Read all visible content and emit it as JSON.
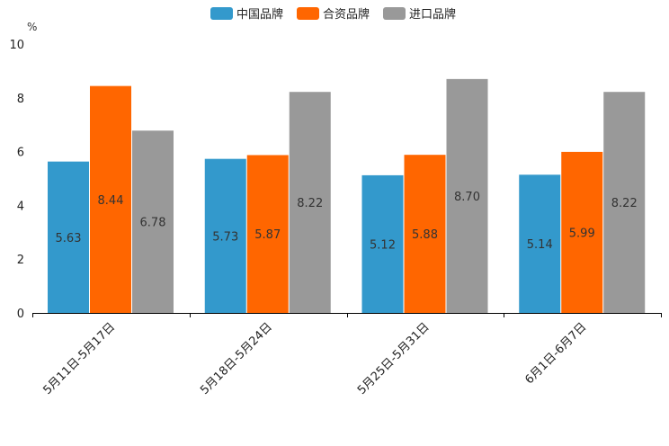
{
  "chart_data": {
    "type": "bar",
    "title": "",
    "unit_label": "%",
    "xlabel": "",
    "ylabel": "%",
    "ylim": [
      0,
      10
    ],
    "yticks": [
      0,
      2,
      4,
      6,
      8,
      10
    ],
    "grid": false,
    "legend_position": "top-center",
    "categories": [
      "5月11日-5月17日",
      "5月18日-5月24日",
      "5月25日-5月31日",
      "6月1日-6月7日"
    ],
    "series": [
      {
        "name": "中国品牌",
        "color": "#3399cc",
        "values": [
          5.63,
          5.73,
          5.12,
          5.14
        ]
      },
      {
        "name": "合资品牌",
        "color": "#ff6600",
        "values": [
          8.44,
          5.87,
          5.88,
          5.99
        ]
      },
      {
        "name": "进口品牌",
        "color": "#999999",
        "values": [
          6.78,
          8.22,
          8.7,
          8.22
        ]
      }
    ]
  }
}
